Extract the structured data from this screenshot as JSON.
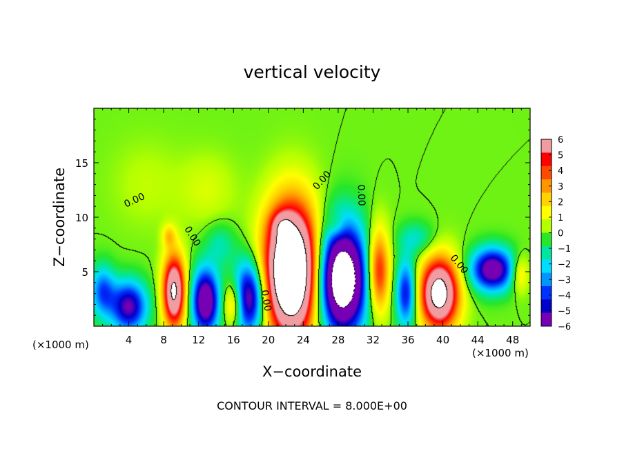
{
  "chart_data": {
    "type": "heatmap",
    "title": "vertical velocity",
    "xlabel": "X−coordinate",
    "ylabel": "Z−coordinate",
    "x_unit_left": "(×1000 m)",
    "x_unit_right": "(×1000 m)",
    "footer": "CONTOUR INTERVAL = 8.000E+00",
    "xlim": [
      0,
      50
    ],
    "ylim": [
      0,
      20
    ],
    "x_ticks": [
      4,
      8,
      12,
      16,
      20,
      24,
      28,
      32,
      36,
      40,
      44,
      48
    ],
    "x_tick_labels": [
      "4",
      "8",
      "12",
      "16",
      "20",
      "24",
      "28",
      "32",
      "36",
      "40",
      "44",
      "48"
    ],
    "y_ticks": [
      5,
      10,
      15
    ],
    "y_tick_labels": [
      "5",
      "10",
      "15"
    ],
    "colorbar": {
      "min": -6,
      "max": 6,
      "tick_values": [
        6,
        5,
        4,
        3,
        2,
        1,
        0,
        -1,
        -2,
        -3,
        -4,
        -5,
        -6
      ],
      "tick_labels": [
        "6",
        "5",
        "4",
        "3",
        "2",
        "1",
        "0",
        "−1",
        "−2",
        "−3",
        "−4",
        "−5",
        "−6"
      ],
      "colors": [
        "#f09ca0",
        "#ff0000",
        "#ff4800",
        "#ff9600",
        "#ffd200",
        "#ffff00",
        "#b4ff00",
        "#28e628",
        "#00e6a0",
        "#00dcff",
        "#0096ff",
        "#0032ff",
        "#0000c8",
        "#7800b4"
      ]
    },
    "contour_labels": [
      {
        "text": "0.00",
        "x": 4.8,
        "y": 11.3,
        "angle": -25
      },
      {
        "text": "0.00",
        "x": 26.4,
        "y": 13.2,
        "angle": -48
      },
      {
        "text": "0.00",
        "x": 30.3,
        "y": 12.0,
        "angle": 88
      },
      {
        "text": "0.00",
        "x": 11.0,
        "y": 8.1,
        "angle": 58
      },
      {
        "text": "0.00",
        "x": 19.4,
        "y": 2.3,
        "angle": 80
      },
      {
        "text": "0.00",
        "x": 41.6,
        "y": 5.5,
        "angle": 50
      }
    ],
    "features": [
      {
        "x": 1.0,
        "z": 3.2,
        "w": -3.8,
        "sx": 1.1,
        "sz": 1.8
      },
      {
        "x": 4.0,
        "z": 1.8,
        "w": -6.0,
        "sx": 1.6,
        "sz": 1.8
      },
      {
        "x": 9.2,
        "z": 3.2,
        "w": 8.5,
        "sx": 1.0,
        "sz": 2.6
      },
      {
        "x": 12.8,
        "z": 2.3,
        "w": -7.5,
        "sx": 1.2,
        "sz": 2.3
      },
      {
        "x": 16.0,
        "z": 2.0,
        "w": 3.5,
        "sx": 0.9,
        "sz": 1.6
      },
      {
        "x": 17.8,
        "z": 2.6,
        "w": -7.0,
        "sx": 1.4,
        "sz": 2.6
      },
      {
        "x": 22.7,
        "z": 5.0,
        "w": 13.0,
        "sx": 2.4,
        "sz": 4.6
      },
      {
        "x": 28.4,
        "z": 4.3,
        "w": -11.0,
        "sx": 2.2,
        "sz": 3.8
      },
      {
        "x": 32.6,
        "z": 5.0,
        "w": 5.5,
        "sx": 1.0,
        "sz": 3.0
      },
      {
        "x": 35.8,
        "z": 3.0,
        "w": -5.0,
        "sx": 0.9,
        "sz": 2.4
      },
      {
        "x": 39.6,
        "z": 3.0,
        "w": 9.5,
        "sx": 1.7,
        "sz": 2.5
      },
      {
        "x": 45.7,
        "z": 5.2,
        "w": -7.0,
        "sx": 1.9,
        "sz": 1.5
      },
      {
        "x": 48.8,
        "z": 4.8,
        "w": 2.5,
        "sx": 0.8,
        "sz": 1.3
      },
      {
        "x": 8.6,
        "z": 8.3,
        "w": 2.0,
        "sx": 0.6,
        "sz": 0.8
      },
      {
        "x": 21.5,
        "z": 9.3,
        "w": 2.0,
        "sx": 1.0,
        "sz": 1.0
      },
      {
        "x": 27.8,
        "z": 9.2,
        "w": 1.5,
        "sx": 0.8,
        "sz": 0.9
      },
      {
        "x": 37.0,
        "z": 8.0,
        "w": -1.8,
        "sx": 1.6,
        "sz": 1.2
      },
      {
        "x": 14.5,
        "z": 7.5,
        "w": -1.5,
        "sx": 1.3,
        "sz": 1.5
      },
      {
        "x": 13.0,
        "z": 12.5,
        "w": 0.9,
        "sx": 2.5,
        "sz": 2.5
      },
      {
        "x": 6.0,
        "z": 13.0,
        "w": 0.6,
        "sx": 3.0,
        "sz": 3.0
      }
    ]
  }
}
